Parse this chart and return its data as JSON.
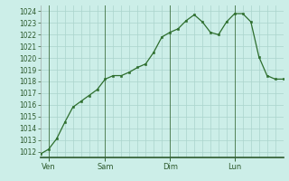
{
  "bg_color": "#cceee8",
  "line_color": "#2d6e2d",
  "marker_color": "#2d6e2d",
  "grid_major_color": "#aad4cc",
  "grid_minor_color": "#c4e8e2",
  "vline_color": "#336633",
  "xlabel_color": "#2d5a2d",
  "ylim": [
    1011.5,
    1024.5
  ],
  "x_values": [
    0,
    3,
    6,
    9,
    12,
    15,
    18,
    21,
    24,
    27,
    30,
    33,
    36,
    39,
    42,
    45,
    48,
    51,
    54,
    57,
    60,
    63,
    66,
    69,
    72,
    75,
    78,
    81,
    84,
    87,
    90
  ],
  "y_values": [
    1011.8,
    1012.2,
    1013.1,
    1014.5,
    1015.8,
    1016.3,
    1016.8,
    1017.3,
    1018.2,
    1018.5,
    1018.5,
    1018.8,
    1019.2,
    1019.5,
    1020.5,
    1021.8,
    1022.2,
    1022.5,
    1023.2,
    1023.7,
    1023.1,
    1022.2,
    1022.0,
    1023.1,
    1023.8,
    1023.8,
    1023.1,
    1020.1,
    1018.5,
    1018.2,
    1018.2
  ],
  "xtick_positions": [
    3,
    24,
    48,
    72
  ],
  "xtick_labels": [
    "Ven",
    "Sam",
    "Dim",
    "Lun"
  ],
  "vline_positions": [
    3,
    24,
    48,
    72
  ],
  "xlim": [
    0,
    90
  ]
}
